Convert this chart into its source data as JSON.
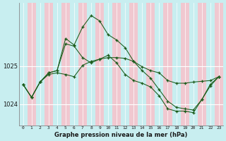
{
  "xlabel": "Graphe pression niveau de la mer (hPa)",
  "background_color": "#c8eef0",
  "stripe_color": "#f0c8d0",
  "grid_color": "#aadddd",
  "line_color": "#1a5c1a",
  "x_ticks": [
    0,
    1,
    2,
    3,
    4,
    5,
    6,
    7,
    8,
    9,
    10,
    11,
    12,
    13,
    14,
    15,
    16,
    17,
    18,
    19,
    20,
    21,
    22,
    23
  ],
  "y_ticks": [
    1024,
    1025
  ],
  "ylim": [
    1023.45,
    1026.65
  ],
  "xlim": [
    -0.5,
    23.5
  ],
  "series1": [
    1024.52,
    1024.18,
    1024.58,
    1024.78,
    1024.82,
    1024.78,
    1024.72,
    1025.02,
    1025.12,
    1025.18,
    1025.22,
    1025.22,
    1025.2,
    1025.12,
    1024.98,
    1024.88,
    1024.82,
    1024.62,
    1024.55,
    1024.55,
    1024.58,
    1024.6,
    1024.62,
    1024.72
  ],
  "series2": [
    1024.52,
    1024.18,
    1024.58,
    1024.82,
    1024.88,
    1025.58,
    1025.52,
    1025.22,
    1025.08,
    1025.18,
    1025.28,
    1025.08,
    1024.78,
    1024.62,
    1024.55,
    1024.45,
    1024.22,
    1023.88,
    1023.82,
    1023.82,
    1023.78,
    1024.12,
    1024.52,
    1024.72
  ],
  "series3": [
    1024.52,
    1024.18,
    1024.58,
    1024.82,
    1024.88,
    1025.72,
    1025.55,
    1026.02,
    1026.32,
    1026.18,
    1025.82,
    1025.68,
    1025.48,
    1025.12,
    1024.88,
    1024.68,
    1024.38,
    1024.08,
    1023.92,
    1023.88,
    1023.85,
    1024.12,
    1024.48,
    1024.72
  ]
}
